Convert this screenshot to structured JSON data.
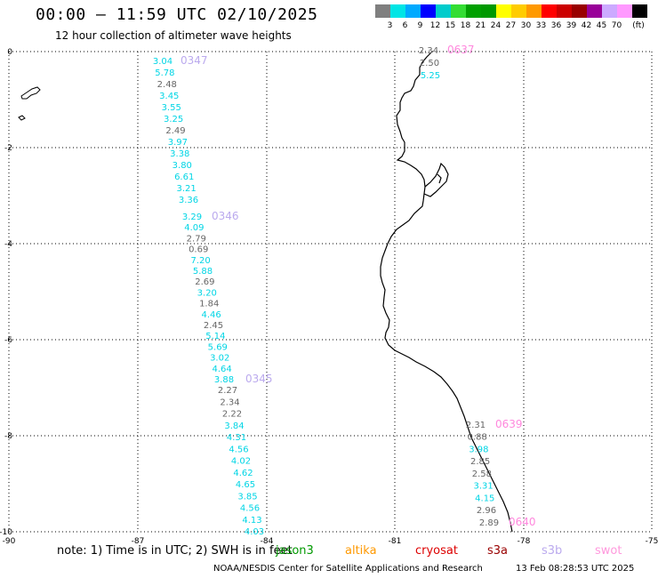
{
  "title": "00:00 – 11:59 UTC 02/10/2025",
  "subtitle": "12 hour collection of altimeter wave heights",
  "scale": {
    "unit": "(ft)",
    "colors": [
      "#7f7f7f",
      "#00e5e5",
      "#00aaff",
      "#0000ff",
      "#00cccc",
      "#33dd33",
      "#00a000",
      "#009900",
      "#ffff00",
      "#ffcc00",
      "#ff9900",
      "#ff0000",
      "#cc0000",
      "#990000",
      "#990099",
      "#ccaaff",
      "#ff99ff",
      "#000000"
    ],
    "labels": [
      "3",
      "6",
      "9",
      "12",
      "15",
      "18",
      "21",
      "24",
      "27",
      "30",
      "33",
      "36",
      "39",
      "42",
      "45",
      "70"
    ]
  },
  "axes": {
    "x_ticks": [
      "-90",
      "-87",
      "-84",
      "-81",
      "-78",
      "-75"
    ],
    "y_ticks": [
      "0",
      "-2",
      "-4",
      "-6",
      "-8",
      "-10"
    ]
  },
  "tracks": [
    {
      "time": "0347",
      "satellite": "s3b",
      "color": "#bbaaee",
      "values": [
        "3.04",
        "5.78",
        "2.48",
        "3.45",
        "3.55",
        "3.25",
        "2.49",
        "3.97",
        "3.38",
        "3.80",
        "6.61",
        "3.21",
        "3.36"
      ]
    },
    {
      "time": "0346",
      "satellite": "s3b",
      "color": "#bbaaee",
      "values": [
        "3.29",
        "4.09",
        "2.79",
        "0.69",
        "7.20",
        "5.88",
        "2.69",
        "3.20",
        "1.84",
        "4.46",
        "2.45",
        "5.14",
        "5.69",
        "3.02",
        "4.64",
        "3.88"
      ]
    },
    {
      "time": "0345",
      "satellite": "s3b",
      "color": "#bbaaee",
      "values": [
        "2.27",
        "2.34",
        "2.22",
        "3.84",
        "4.31",
        "4.56",
        "4.02",
        "4.62",
        "4.65",
        "3.85",
        "4.56",
        "4.13",
        "4.03"
      ]
    },
    {
      "time": "0637",
      "satellite": "swot",
      "color": "#ff88dd",
      "values": [
        "2.34",
        "2.50",
        "5.25"
      ]
    },
    {
      "time": "0639",
      "satellite": "swot",
      "color": "#ff88dd",
      "values": [
        "2.31",
        "0.88",
        "3.98",
        "2.85",
        "2.58",
        "3.31",
        "4.15",
        "2.96"
      ]
    },
    {
      "time": "0640",
      "satellite": "swot",
      "color": "#ff88dd",
      "values": [
        "2.89"
      ]
    }
  ],
  "note": "note:  1) Time is in UTC;  2) SWH is in feet",
  "satellites": [
    {
      "name": "jason3",
      "color": "#009900"
    },
    {
      "name": "altika",
      "color": "#ff9900"
    },
    {
      "name": "cryosat",
      "color": "#dd0000"
    },
    {
      "name": "s3a",
      "color": "#990000"
    },
    {
      "name": "s3b",
      "color": "#bbaaee"
    },
    {
      "name": "swot",
      "color": "#ff99dd"
    }
  ],
  "footer_left": "NOAA/NESDIS Center for Satellite Applications and Research",
  "footer_right": "13 Feb 08:28:53 UTC 2025"
}
